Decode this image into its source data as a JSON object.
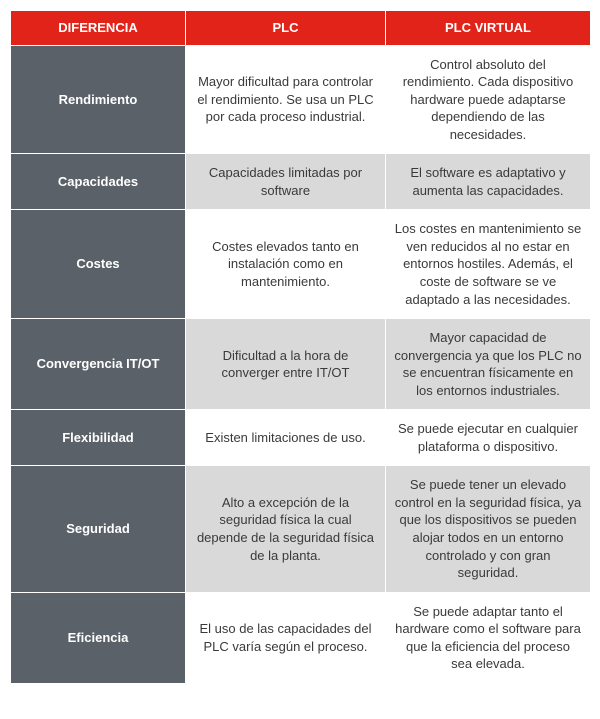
{
  "colors": {
    "header_bg": "#e2231a",
    "rowhead_bg": "#5a6168",
    "cell_bg_light": "#ffffff",
    "cell_bg_alt": "#d9d9d9",
    "border": "#ffffff",
    "header_text": "#ffffff",
    "body_text": "#3a3a3a"
  },
  "table": {
    "columns": [
      {
        "key": "diff",
        "label": "DIFERENCIA"
      },
      {
        "key": "plc",
        "label": "PLC"
      },
      {
        "key": "vplc",
        "label": "PLC VIRTUAL"
      }
    ],
    "rows": [
      {
        "label": "Rendimiento",
        "plc": "Mayor dificultad para controlar el rendimiento. Se usa un PLC por cada proceso industrial.",
        "vplc": "Control absoluto del rendimiento. Cada dispositivo hardware puede adaptarse dependiendo de las necesidades.",
        "alt": false
      },
      {
        "label": "Capacidades",
        "plc": "Capacidades limitadas por software",
        "vplc": "El software es adaptativo y aumenta las capacidades.",
        "alt": true
      },
      {
        "label": "Costes",
        "plc": "Costes elevados tanto en instalación como en mantenimiento.",
        "vplc": "Los costes en mantenimiento se ven reducidos al no estar en entornos hostiles. Además, el coste de software se ve adaptado a las necesidades.",
        "alt": false
      },
      {
        "label": "Convergencia IT/OT",
        "plc": "Dificultad a la hora de converger entre IT/OT",
        "vplc": "Mayor capacidad de convergencia ya que los PLC no se encuentran físicamente en los entornos industriales.",
        "alt": true
      },
      {
        "label": "Flexibilidad",
        "plc": "Existen limitaciones de uso.",
        "vplc": "Se puede ejecutar en cualquier plataforma o dispositivo.",
        "alt": false
      },
      {
        "label": "Seguridad",
        "plc": "Alto a excepción de la seguridad física la cual depende de la seguridad física de la planta.",
        "vplc": "Se puede tener un elevado control en la seguridad física, ya que los dispositivos se pueden alojar todos en un entorno controlado y con gran seguridad.",
        "alt": true
      },
      {
        "label": "Eficiencia",
        "plc": "El uso de las capacidades del PLC varía según el proceso.",
        "vplc": "Se puede adaptar tanto el hardware como el software para que la eficiencia del proceso sea elevada.",
        "alt": false
      }
    ]
  }
}
